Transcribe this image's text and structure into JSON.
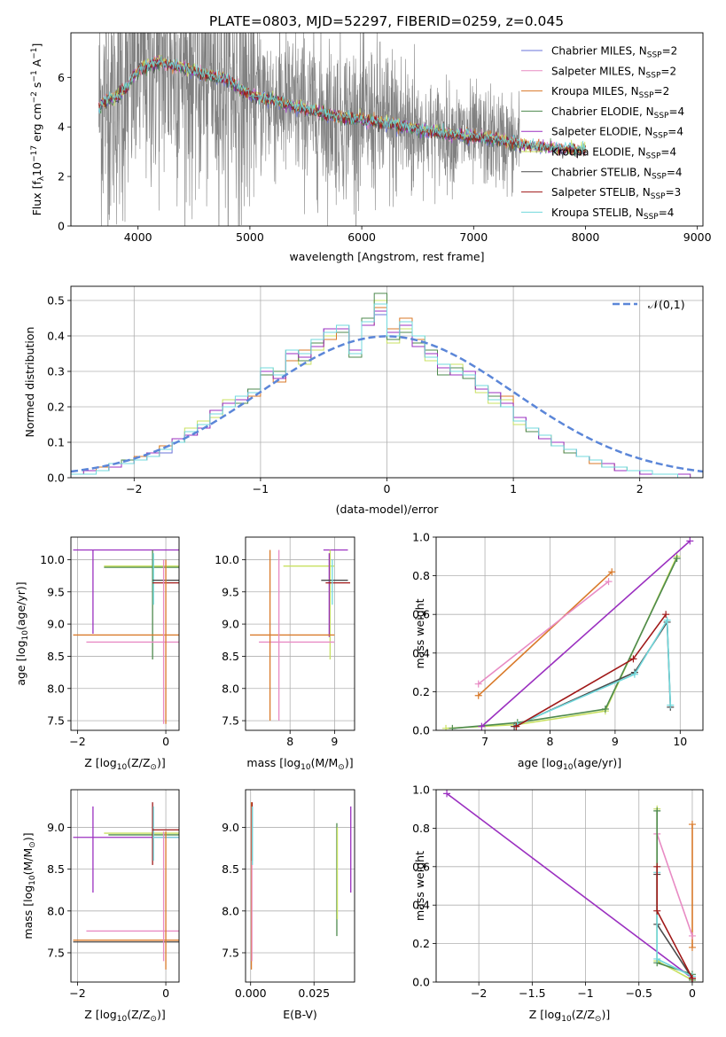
{
  "figure_title": "PLATE=0803, MJD=52297, FIBERID=0259, z=0.045",
  "colors": {
    "chabrier_miles": "#6a73d8",
    "salpeter_miles": "#e88bc4",
    "kroupa_miles": "#d97a2a",
    "chabrier_elodie": "#4e8a4e",
    "salpeter_elodie": "#9b30c0",
    "kroupa_elodie": "#c8e060",
    "chabrier_stelib": "#4a4a4a",
    "salpeter_stelib": "#a01818",
    "kroupa_stelib": "#70d8dc",
    "data": "#808080",
    "normal": "#5b86d8"
  },
  "chart_data": [
    {
      "id": "spectrum",
      "type": "line",
      "xlabel": "wavelength [Angstrom, rest frame]",
      "ylabel": "Flux [f_λ10^-17 erg cm^-2 s^-1 A^-1]",
      "xlim": [
        3400,
        9050
      ],
      "ylim": [
        0,
        7.8
      ],
      "xticks": [
        4000,
        5000,
        6000,
        7000,
        8000,
        9000
      ],
      "yticks": [
        0,
        2,
        4,
        6
      ],
      "grid": false,
      "legend_position": "upper-right",
      "legend": [
        "Chabrier MILES, N_SSP=2",
        "Salpeter MILES, N_SSP=2",
        "Kroupa MILES, N_SSP=2",
        "Chabrier ELODIE, N_SSP=4",
        "Salpeter ELODIE, N_SSP=4",
        "Kroupa ELODIE, N_SSP=4",
        "Chabrier STELIB, N_SSP=4",
        "Salpeter STELIB, N_SSP=3",
        "Kroupa STELIB, N_SSP=4"
      ],
      "data_range": [
        3650,
        7410
      ],
      "model_continuum": {
        "x": [
          3650,
          3700,
          3800,
          3900,
          4000,
          4100,
          4200,
          4400,
          4600,
          4800,
          5000,
          5200,
          5500,
          5800,
          6000,
          6300,
          6500,
          6800,
          7000,
          7200,
          7410,
          7600,
          7800,
          8000
        ],
        "y": [
          4.8,
          5.0,
          5.2,
          5.6,
          6.3,
          6.5,
          6.6,
          6.4,
          6.1,
          5.9,
          5.3,
          5.1,
          4.7,
          4.4,
          4.3,
          4.1,
          3.9,
          3.7,
          3.6,
          3.5,
          3.3,
          3.2,
          3.1,
          3.05
        ]
      }
    },
    {
      "id": "residuals",
      "type": "line",
      "xlabel": "(data-model)/error",
      "ylabel": "Normed distribution",
      "xlim": [
        -2.5,
        2.5
      ],
      "ylim": [
        0,
        0.54
      ],
      "xticks": [
        -2,
        -1,
        0,
        1,
        2
      ],
      "yticks": [
        0.0,
        0.1,
        0.2,
        0.3,
        0.4,
        0.5
      ],
      "grid": true,
      "legend_position": "upper-right",
      "legend": [
        "𝒩(0,1)"
      ],
      "bin_width": 0.1,
      "series": [
        {
          "values": [
            0.01,
            0.01,
            0.02,
            0.03,
            0.04,
            0.05,
            0.06,
            0.07,
            0.1,
            0.12,
            0.14,
            0.19,
            0.21,
            0.22,
            0.25,
            0.3,
            0.28,
            0.36,
            0.35,
            0.38,
            0.42,
            0.43,
            0.35,
            0.44,
            0.46,
            0.4,
            0.43,
            0.38,
            0.35,
            0.32,
            0.3,
            0.28,
            0.26,
            0.24,
            0.2,
            0.17,
            0.14,
            0.11,
            0.09,
            0.08,
            0.06,
            0.05,
            0.03,
            0.02,
            0.02,
            0.01,
            0.01,
            0.01,
            0.0,
            0.0
          ]
        },
        {
          "values": [
            0.01,
            0.02,
            0.02,
            0.04,
            0.05,
            0.05,
            0.07,
            0.09,
            0.11,
            0.14,
            0.16,
            0.17,
            0.22,
            0.22,
            0.24,
            0.31,
            0.28,
            0.35,
            0.32,
            0.36,
            0.4,
            0.41,
            0.35,
            0.44,
            0.5,
            0.38,
            0.42,
            0.4,
            0.33,
            0.29,
            0.32,
            0.29,
            0.24,
            0.21,
            0.22,
            0.15,
            0.14,
            0.12,
            0.1,
            0.08,
            0.06,
            0.05,
            0.03,
            0.03,
            0.02,
            0.02,
            0.01,
            0.01,
            0.01,
            0.0
          ]
        },
        {
          "values": [
            0.01,
            0.01,
            0.03,
            0.03,
            0.04,
            0.06,
            0.06,
            0.09,
            0.1,
            0.13,
            0.15,
            0.19,
            0.2,
            0.22,
            0.23,
            0.3,
            0.27,
            0.33,
            0.36,
            0.37,
            0.39,
            0.42,
            0.36,
            0.43,
            0.48,
            0.42,
            0.45,
            0.39,
            0.34,
            0.31,
            0.3,
            0.29,
            0.26,
            0.22,
            0.23,
            0.16,
            0.13,
            0.12,
            0.09,
            0.07,
            0.06,
            0.04,
            0.04,
            0.02,
            0.02,
            0.02,
            0.01,
            0.01,
            0.0,
            0.0
          ]
        },
        {
          "values": [
            0.01,
            0.01,
            0.02,
            0.03,
            0.05,
            0.05,
            0.07,
            0.08,
            0.1,
            0.12,
            0.15,
            0.18,
            0.21,
            0.21,
            0.25,
            0.29,
            0.3,
            0.36,
            0.33,
            0.38,
            0.41,
            0.41,
            0.34,
            0.45,
            0.52,
            0.39,
            0.41,
            0.38,
            0.36,
            0.29,
            0.31,
            0.28,
            0.25,
            0.23,
            0.2,
            0.16,
            0.13,
            0.11,
            0.09,
            0.07,
            0.06,
            0.05,
            0.03,
            0.03,
            0.02,
            0.01,
            0.01,
            0.01,
            0.0,
            0.0
          ]
        },
        {
          "values": [
            0.01,
            0.02,
            0.02,
            0.03,
            0.04,
            0.05,
            0.07,
            0.08,
            0.11,
            0.12,
            0.14,
            0.19,
            0.21,
            0.22,
            0.24,
            0.3,
            0.28,
            0.35,
            0.34,
            0.37,
            0.42,
            0.42,
            0.36,
            0.43,
            0.47,
            0.41,
            0.43,
            0.37,
            0.35,
            0.31,
            0.29,
            0.3,
            0.25,
            0.24,
            0.21,
            0.17,
            0.14,
            0.11,
            0.1,
            0.08,
            0.06,
            0.05,
            0.04,
            0.02,
            0.02,
            0.01,
            0.01,
            0.01,
            0.01,
            0.0
          ]
        },
        {
          "values": [
            0.01,
            0.01,
            0.02,
            0.04,
            0.04,
            0.05,
            0.06,
            0.08,
            0.1,
            0.13,
            0.15,
            0.18,
            0.2,
            0.23,
            0.24,
            0.31,
            0.29,
            0.36,
            0.35,
            0.39,
            0.41,
            0.43,
            0.35,
            0.44,
            0.49,
            0.4,
            0.44,
            0.4,
            0.34,
            0.32,
            0.3,
            0.29,
            0.26,
            0.22,
            0.2,
            0.16,
            0.14,
            0.12,
            0.09,
            0.08,
            0.06,
            0.05,
            0.03,
            0.03,
            0.02,
            0.02,
            0.01,
            0.01,
            0.0,
            0.0
          ]
        }
      ],
      "reference_curve": "normal(0,1)"
    },
    {
      "id": "age_vs_Z",
      "type": "scatter",
      "xlabel": "Z [log10(Z/Z⊙)]",
      "ylabel": "age  [log10(age/yr)]",
      "xlim": [
        -2.15,
        0.3
      ],
      "ylim": [
        7.35,
        10.35
      ],
      "xticks": [
        -2,
        0
      ],
      "yticks": [
        7.5,
        8.0,
        8.5,
        9.0,
        9.5,
        10.0
      ],
      "grid": true
    },
    {
      "id": "age_vs_mass",
      "type": "scatter",
      "xlabel": "mass [log10(M/M⊙)]",
      "ylabel": "",
      "xlim": [
        7.0,
        9.45
      ],
      "ylim": [
        7.35,
        10.35
      ],
      "xticks": [
        8,
        9
      ],
      "yticks": [
        7.5,
        8.0,
        8.5,
        9.0,
        9.5,
        10.0
      ],
      "grid": true
    },
    {
      "id": "weight_vs_age",
      "type": "line",
      "xlabel": "age  [log10(age/yr)]",
      "ylabel": "mass weight",
      "xlim": [
        6.25,
        10.35
      ],
      "ylim": [
        0,
        1.0
      ],
      "xticks": [
        7,
        8,
        9,
        10
      ],
      "yticks": [
        0.0,
        0.2,
        0.4,
        0.6,
        0.8,
        1.0
      ],
      "grid": true,
      "series": [
        {
          "x": [
            6.9,
            8.95
          ],
          "y": [
            0.18,
            0.82
          ]
        },
        {
          "x": [
            6.9,
            8.9
          ],
          "y": [
            0.24,
            0.77
          ]
        },
        {
          "x": [
            6.4,
            7.5,
            8.85,
            9.95
          ],
          "y": [
            0.01,
            0.03,
            0.1,
            0.9
          ]
        },
        {
          "x": [
            6.5,
            7.5,
            8.85,
            9.95
          ],
          "y": [
            0.01,
            0.04,
            0.11,
            0.89
          ]
        },
        {
          "x": [
            6.95,
            10.15
          ],
          "y": [
            0.02,
            0.98
          ]
        },
        {
          "x": [
            7.45,
            9.3,
            9.8,
            9.85
          ],
          "y": [
            0.02,
            0.3,
            0.56,
            0.12
          ]
        },
        {
          "x": [
            7.5,
            9.3,
            9.8,
            9.85
          ],
          "y": [
            0.03,
            0.29,
            0.57,
            0.13
          ]
        },
        {
          "x": [
            7.48,
            9.28,
            9.78
          ],
          "y": [
            0.02,
            0.37,
            0.6
          ]
        }
      ]
    },
    {
      "id": "mass_vs_Z",
      "type": "scatter",
      "xlabel": "Z [log10(Z/Z⊙)]",
      "ylabel": "mass [log10(M/M⊙)]",
      "xlim": [
        -2.15,
        0.3
      ],
      "ylim": [
        7.15,
        9.45
      ],
      "xticks": [
        -2,
        0
      ],
      "yticks": [
        7.5,
        8.0,
        8.5,
        9.0
      ],
      "grid": true
    },
    {
      "id": "mass_vs_ebv",
      "type": "scatter",
      "xlabel": "E(B-V)",
      "ylabel": "",
      "xlim": [
        -0.002,
        0.041
      ],
      "ylim": [
        7.15,
        9.45
      ],
      "xticks": [
        0.0,
        0.025
      ],
      "xtick_labels": [
        "0.000",
        "0.025"
      ],
      "yticks": [
        7.5,
        8.0,
        8.5,
        9.0
      ],
      "grid": true
    },
    {
      "id": "weight_vs_Z",
      "type": "line",
      "xlabel": "Z [log10(Z/Z⊙)]",
      "ylabel": "mass weight",
      "xlim": [
        -2.4,
        0.1
      ],
      "ylim": [
        0,
        1.0
      ],
      "xticks": [
        -2.0,
        -1.5,
        -1.0,
        -0.5,
        0.0
      ],
      "yticks": [
        0.0,
        0.2,
        0.4,
        0.6,
        0.8,
        1.0
      ],
      "grid": true,
      "series": [
        {
          "x": [
            0.0,
            0.0
          ],
          "y": [
            0.82,
            0.18
          ]
        },
        {
          "x": [
            -0.33,
            0.0
          ],
          "y": [
            0.77,
            0.24
          ]
        },
        {
          "x": [
            -0.33,
            -0.33,
            0.0
          ],
          "y": [
            0.9,
            0.11,
            0.01
          ]
        },
        {
          "x": [
            -0.33,
            -0.33,
            0.0,
            0.0
          ],
          "y": [
            0.89,
            0.1,
            0.04,
            0.01
          ]
        },
        {
          "x": [
            -2.3,
            0.0
          ],
          "y": [
            0.98,
            0.02
          ]
        },
        {
          "x": [
            -0.33,
            -0.33,
            0.0
          ],
          "y": [
            0.56,
            0.3,
            0.02
          ]
        },
        {
          "x": [
            -0.33,
            -0.33,
            0.0
          ],
          "y": [
            0.57,
            0.12,
            0.03
          ]
        },
        {
          "x": [
            -0.33,
            -0.33,
            0.0
          ],
          "y": [
            0.6,
            0.37,
            0.02
          ]
        }
      ]
    }
  ]
}
